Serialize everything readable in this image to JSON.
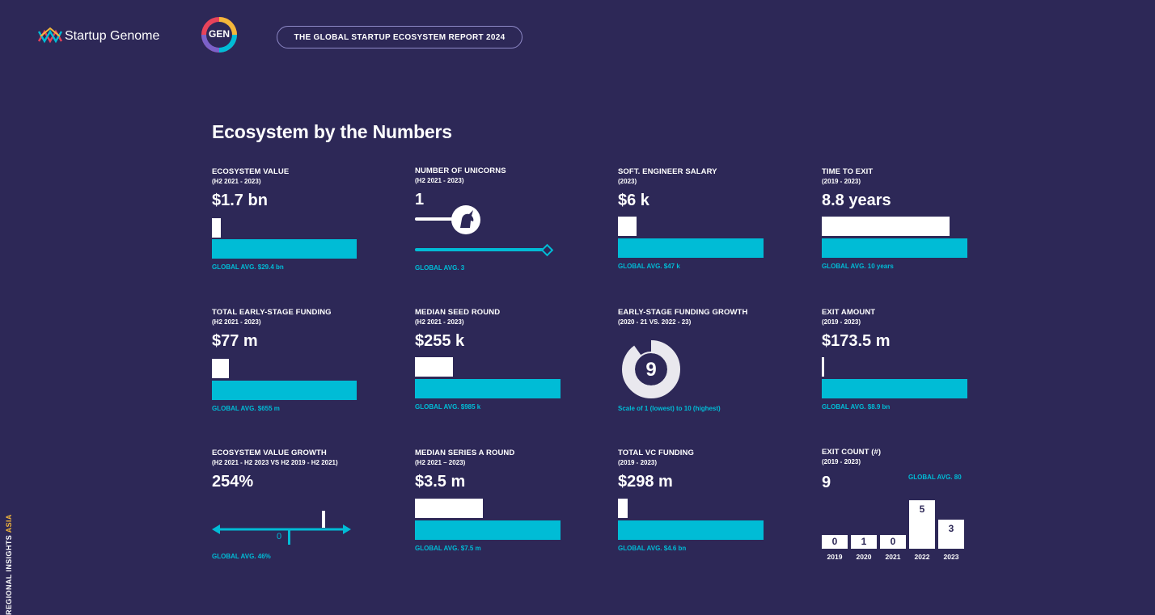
{
  "header": {
    "brand": "Startup Genome",
    "gen_badge": "GEN",
    "report_title": "THE GLOBAL STARTUP ECOSYSTEM REPORT 2024"
  },
  "title": "Ecosystem by the Numbers",
  "sidebar": {
    "label": "REGIONAL INSIGHTS",
    "label_accent": "ASIA"
  },
  "colors": {
    "background": "#2d2857",
    "accent": "#00bcd6",
    "highlight": "#f4b73a"
  },
  "metrics": {
    "ecosystem_value": {
      "label": "ECOSYSTEM VALUE",
      "period": "(H2 2021 - 2023)",
      "value": "$1.7 bn",
      "avg": "GLOBAL AVG. $29.4 bn",
      "ratio": 0.058
    },
    "unicorns": {
      "label": "NUMBER OF UNICORNS",
      "period": "(H2 2021 - 2023)",
      "value": "1",
      "avg": "GLOBAL AVG. 3",
      "icon": "unicorn-icon",
      "ratio": 0.333
    },
    "salary": {
      "label": "SOFT. ENGINEER SALARY",
      "period": "(2023)",
      "value": "$6 k",
      "avg": "GLOBAL AVG. $47 k",
      "ratio": 0.128
    },
    "time_to_exit": {
      "label": "TIME TO EXIT",
      "period": "(2019 - 2023)",
      "value": "8.8 years",
      "avg": "GLOBAL AVG. 10 years",
      "ratio": 0.88
    },
    "early_funding": {
      "label": "TOTAL EARLY-STAGE FUNDING",
      "period": "(H2 2021 - 2023)",
      "value": "$77 m",
      "avg": "GLOBAL AVG. $655 m",
      "ratio": 0.118
    },
    "seed_round": {
      "label": "MEDIAN SEED ROUND",
      "period": "(H2 2021 - 2023)",
      "value": "$255 k",
      "avg": "GLOBAL AVG. $985 k",
      "ratio": 0.259
    },
    "funding_growth": {
      "label": "EARLY-STAGE FUNDING GROWTH",
      "period": "(2020 - 21 VS. 2022 - 23)",
      "value": "9",
      "scale": "Scale of 1 (lowest) to 10 (highest)",
      "ratio": 0.9
    },
    "exit_amount": {
      "label": "EXIT AMOUNT",
      "period": "(2019 - 2023)",
      "value": "$173.5 m",
      "avg": "GLOBAL AVG. $8.9 bn",
      "ratio": 0.019
    },
    "value_growth": {
      "label": "ECOSYSTEM VALUE GROWTH",
      "period": "(H2 2021 - H2 2023 VS H2 2019 - H2 2021)",
      "value": "254%",
      "avg": "GLOBAL AVG. 46%",
      "zero": "0"
    },
    "series_a": {
      "label": "MEDIAN SERIES A ROUND",
      "period": "(H2 2021 – 2023)",
      "value": "$3.5 m",
      "avg": "GLOBAL AVG. $7.5 m",
      "ratio": 0.467
    },
    "vc_funding": {
      "label": "TOTAL VC FUNDING",
      "period": "(2019 - 2023)",
      "value": "$298 m",
      "avg": "GLOBAL AVG. $4.6 bn",
      "ratio": 0.065
    },
    "exit_count": {
      "label": "EXIT COUNT (#)",
      "period": "(2019 - 2023)",
      "value": "9",
      "avg": "GLOBAL AVG. 80",
      "years": [
        "2019",
        "2020",
        "2021",
        "2022",
        "2023"
      ],
      "counts": [
        "0",
        "1",
        "0",
        "5",
        "3"
      ],
      "levels": [
        0,
        1,
        0,
        5,
        3
      ]
    }
  }
}
